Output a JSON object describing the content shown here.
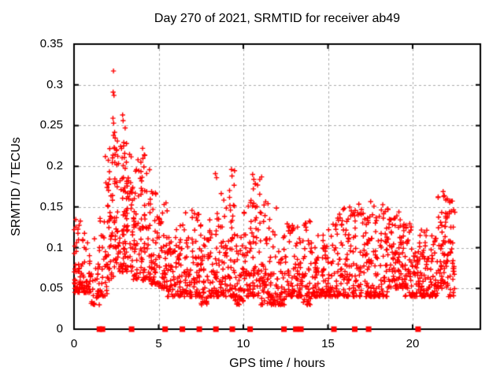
{
  "figure": {
    "background": "#ffffff",
    "text_color": "#000000",
    "border_color": "#000000"
  },
  "chart_data": {
    "type": "scatter",
    "title": "Day 270 of 2021, SRMTID for receiver ab49",
    "xlabel": "GPS time / hours",
    "ylabel": "SRMTID / TECUs",
    "xlim": [
      0,
      24
    ],
    "ylim": [
      0,
      0.35
    ],
    "xticks": [
      0,
      5,
      10,
      15,
      20
    ],
    "xtick_labels": [
      "0",
      "5",
      "10",
      "15",
      "20"
    ],
    "yticks": [
      0,
      0.05,
      0.1,
      0.15,
      0.2,
      0.25,
      0.3,
      0.35
    ],
    "ytick_labels": [
      "0",
      "0.05",
      "0.1",
      "0.15",
      "0.2",
      "0.25",
      "0.3",
      "0.35"
    ],
    "grid": {
      "show": true,
      "color": "#ababab",
      "dash": [
        3,
        3
      ]
    },
    "legend": "none",
    "marker_color": "#ff0000",
    "series": [
      {
        "name": "srmtid-values",
        "marker": "plus",
        "color": "#ff0000",
        "seed": 20210270,
        "bin_width_hours": 0.5,
        "bins_format": [
          "start_hour",
          "count",
          "y_min",
          "y_max",
          "skew"
        ],
        "bins": [
          [
            0.0,
            50,
            0.045,
            0.135,
            2.2
          ],
          [
            0.5,
            40,
            0.045,
            0.12,
            2.2
          ],
          [
            1.0,
            28,
            0.03,
            0.115,
            2.2
          ],
          [
            1.5,
            38,
            0.04,
            0.195,
            1.6
          ],
          [
            2.0,
            60,
            0.06,
            0.245,
            1.3
          ],
          [
            2.5,
            60,
            0.07,
            0.235,
            1.4
          ],
          [
            3.0,
            55,
            0.07,
            0.22,
            1.5
          ],
          [
            3.5,
            50,
            0.06,
            0.21,
            1.6
          ],
          [
            4.0,
            50,
            0.06,
            0.215,
            1.7
          ],
          [
            4.5,
            45,
            0.055,
            0.17,
            1.9
          ],
          [
            5.0,
            45,
            0.05,
            0.16,
            2.0
          ],
          [
            5.5,
            38,
            0.04,
            0.125,
            2.0
          ],
          [
            6.0,
            40,
            0.04,
            0.13,
            2.0
          ],
          [
            6.5,
            40,
            0.04,
            0.15,
            2.0
          ],
          [
            7.0,
            42,
            0.04,
            0.145,
            2.0
          ],
          [
            7.5,
            40,
            0.03,
            0.12,
            2.0
          ],
          [
            8.0,
            42,
            0.04,
            0.165,
            1.9
          ],
          [
            8.5,
            45,
            0.04,
            0.185,
            1.8
          ],
          [
            9.0,
            45,
            0.04,
            0.195,
            1.8
          ],
          [
            9.5,
            40,
            0.03,
            0.13,
            2.0
          ],
          [
            10.0,
            42,
            0.04,
            0.16,
            1.9
          ],
          [
            10.5,
            48,
            0.04,
            0.185,
            1.6
          ],
          [
            11.0,
            42,
            0.03,
            0.18,
            1.9
          ],
          [
            11.5,
            40,
            0.03,
            0.15,
            2.0
          ],
          [
            12.0,
            40,
            0.03,
            0.12,
            2.0
          ],
          [
            12.5,
            40,
            0.04,
            0.13,
            2.0
          ],
          [
            13.0,
            42,
            0.04,
            0.135,
            2.0
          ],
          [
            13.5,
            40,
            0.03,
            0.14,
            2.0
          ],
          [
            14.0,
            40,
            0.04,
            0.12,
            2.0
          ],
          [
            14.5,
            38,
            0.04,
            0.12,
            2.0
          ],
          [
            15.0,
            40,
            0.04,
            0.13,
            2.0
          ],
          [
            15.5,
            40,
            0.04,
            0.15,
            2.0
          ],
          [
            16.0,
            40,
            0.04,
            0.15,
            2.0
          ],
          [
            16.5,
            42,
            0.04,
            0.155,
            1.9
          ],
          [
            17.0,
            40,
            0.04,
            0.15,
            2.0
          ],
          [
            17.5,
            42,
            0.04,
            0.158,
            1.9
          ],
          [
            18.0,
            42,
            0.04,
            0.157,
            1.9
          ],
          [
            18.5,
            45,
            0.05,
            0.152,
            1.9
          ],
          [
            19.0,
            45,
            0.05,
            0.145,
            1.9
          ],
          [
            19.5,
            42,
            0.04,
            0.13,
            2.0
          ],
          [
            20.0,
            40,
            0.04,
            0.12,
            2.0
          ],
          [
            20.5,
            40,
            0.04,
            0.125,
            2.0
          ],
          [
            21.0,
            42,
            0.04,
            0.13,
            2.0
          ],
          [
            21.5,
            50,
            0.05,
            0.17,
            1.6
          ],
          [
            22.0,
            45,
            0.04,
            0.158,
            1.7
          ]
        ],
        "outliers": [
          [
            1.85,
            0.212
          ],
          [
            2.33,
            0.317
          ],
          [
            2.31,
            0.291
          ],
          [
            2.36,
            0.287
          ],
          [
            2.3,
            0.259
          ],
          [
            2.34,
            0.253
          ],
          [
            2.87,
            0.263
          ],
          [
            2.9,
            0.256
          ],
          [
            2.33,
            0.238
          ],
          [
            3.02,
            0.247
          ],
          [
            2.56,
            0.231
          ],
          [
            3.1,
            0.228
          ],
          [
            3.95,
            0.205
          ],
          [
            4.05,
            0.222
          ],
          [
            4.15,
            0.214
          ],
          [
            8.35,
            0.191
          ],
          [
            8.42,
            0.186
          ],
          [
            9.3,
            0.196
          ],
          [
            9.33,
            0.188
          ],
          [
            10.55,
            0.19
          ],
          [
            10.62,
            0.184
          ],
          [
            11.08,
            0.187
          ],
          [
            15.9,
            0.147
          ],
          [
            21.8,
            0.169
          ],
          [
            21.87,
            0.164
          ],
          [
            22.05,
            0.16
          ]
        ]
      },
      {
        "name": "baseline-event-flags",
        "marker": "filled-square",
        "color": "#ff0000",
        "y": 0,
        "x": [
          1.5,
          1.68,
          3.4,
          5.38,
          6.4,
          7.4,
          8.38,
          9.35,
          10.4,
          12.4,
          13.1,
          13.4,
          15.35,
          16.58,
          17.4,
          20.32
        ]
      }
    ]
  }
}
